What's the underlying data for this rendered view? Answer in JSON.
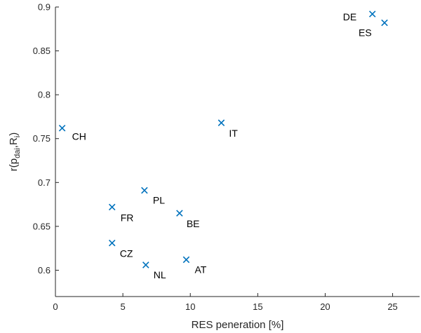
{
  "chart_data": {
    "type": "scatter",
    "title": "",
    "xlabel": "RES peneration [%]",
    "ylabel": "r(p_dai, R_i)",
    "ylabel_parts": {
      "base": "r(p",
      "sub1": "dai",
      "mid": ",R",
      "sub2": "i",
      "end": ")"
    },
    "xlim": [
      0,
      27
    ],
    "ylim": [
      0.57,
      0.9
    ],
    "xticks": [
      0,
      5,
      10,
      15,
      20,
      25
    ],
    "yticks": [
      0.6,
      0.65,
      0.7,
      0.75,
      0.8,
      0.85,
      0.9
    ],
    "grid": false,
    "marker": "x",
    "marker_color": "#0072BD",
    "points": [
      {
        "label": "DE",
        "x": 23.5,
        "y": 0.892
      },
      {
        "label": "ES",
        "x": 24.4,
        "y": 0.882
      },
      {
        "label": "IT",
        "x": 12.3,
        "y": 0.768
      },
      {
        "label": "CH",
        "x": 0.5,
        "y": 0.762
      },
      {
        "label": "PL",
        "x": 6.6,
        "y": 0.691
      },
      {
        "label": "FR",
        "x": 4.2,
        "y": 0.672
      },
      {
        "label": "BE",
        "x": 9.2,
        "y": 0.665
      },
      {
        "label": "CZ",
        "x": 4.2,
        "y": 0.631
      },
      {
        "label": "AT",
        "x": 9.7,
        "y": 0.612
      },
      {
        "label": "NL",
        "x": 6.7,
        "y": 0.606
      }
    ]
  }
}
